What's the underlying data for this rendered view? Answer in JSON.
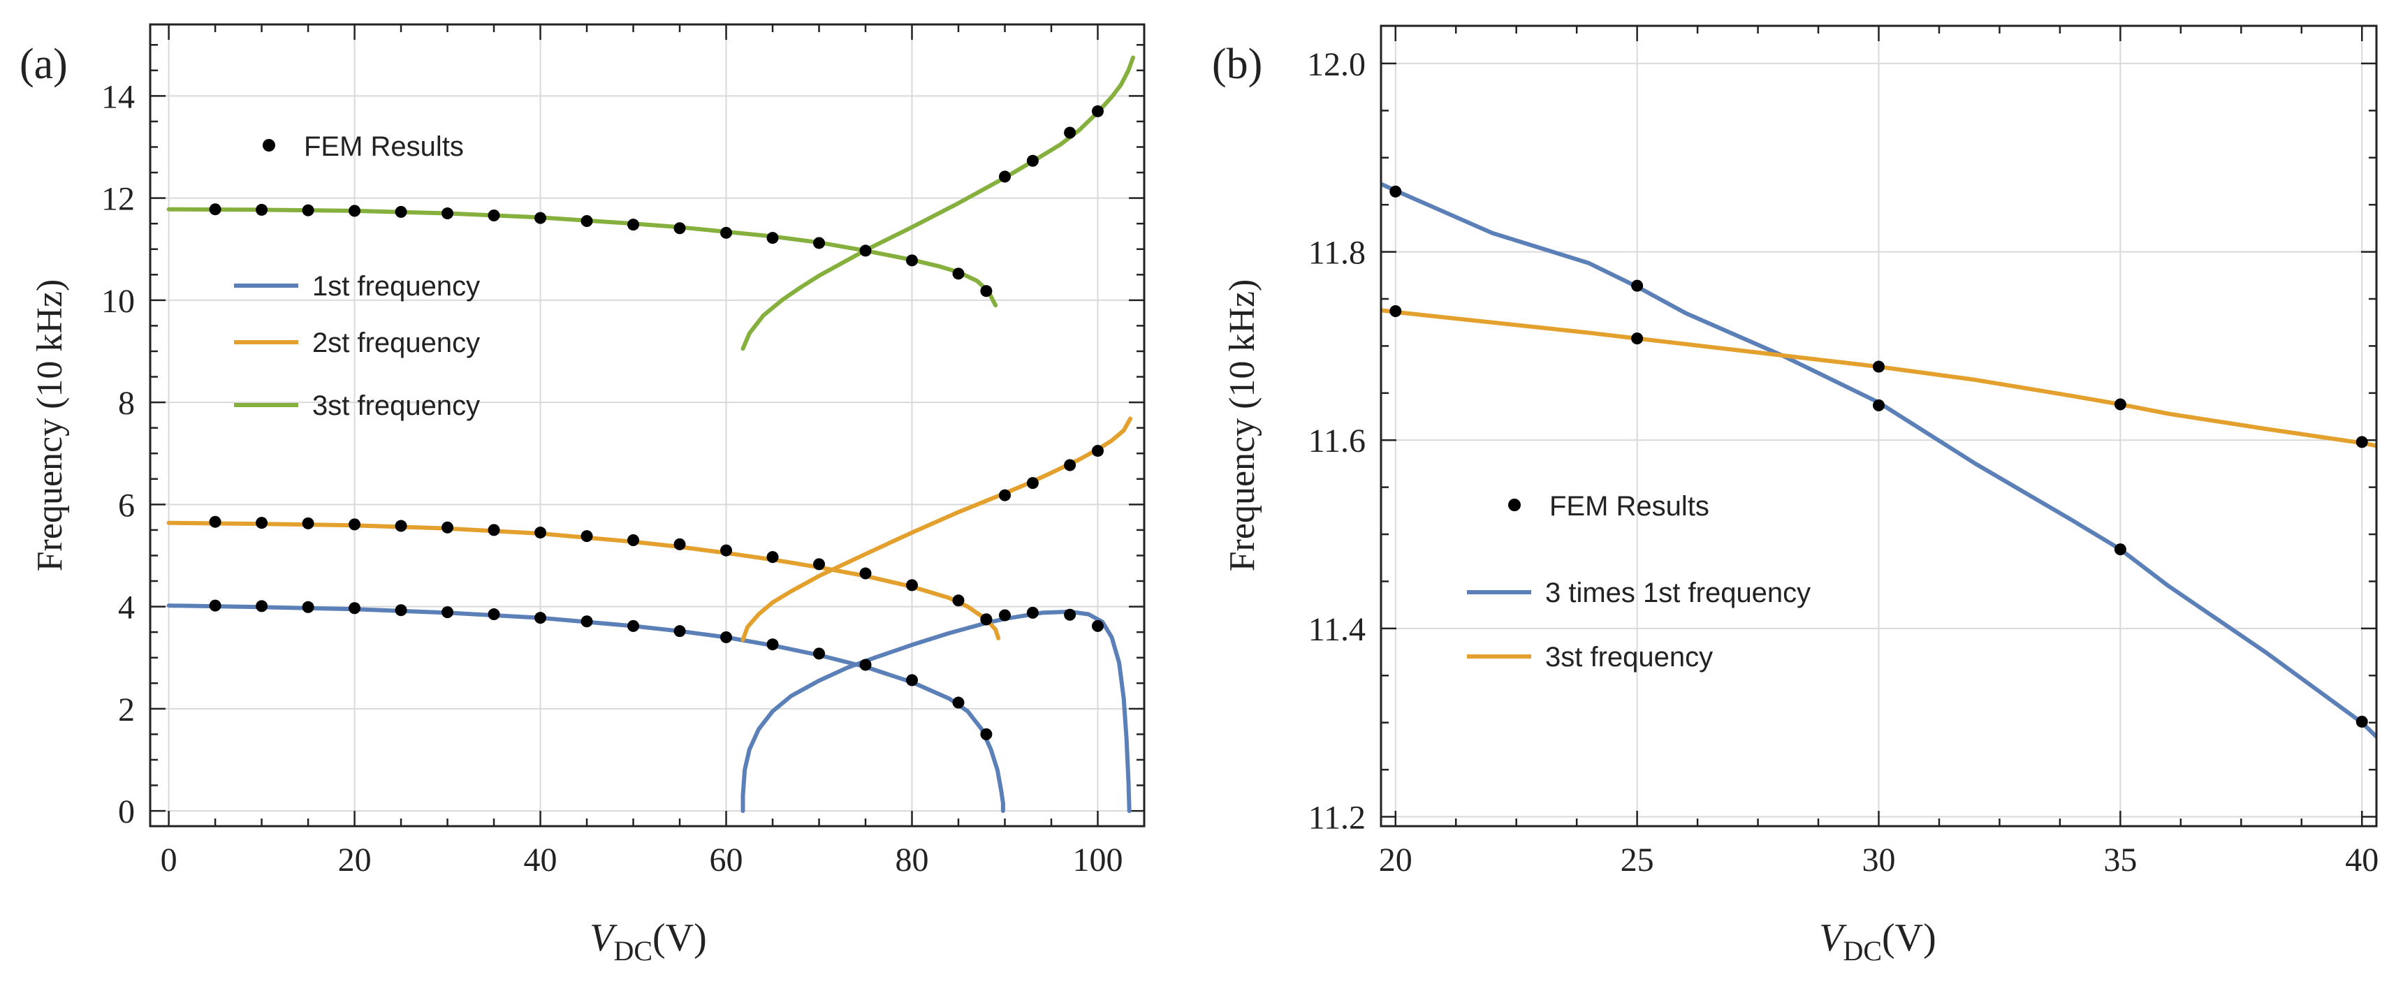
{
  "chart_data": [
    {
      "type": "line",
      "panel_label": "(a)",
      "xlabel_main": "V",
      "xlabel_sub": "DC",
      "xlabel_unit": "(V)",
      "ylabel": "Frequency (10 kHz)",
      "xlim": [
        -2,
        105
      ],
      "ylim": [
        -0.3,
        15.4
      ],
      "xticks": [
        0,
        20,
        40,
        60,
        80,
        100
      ],
      "yticks": [
        0,
        2,
        4,
        6,
        8,
        10,
        12,
        14
      ],
      "grid": true,
      "legend_position": "upper-left",
      "scatter_legend": "FEM Results",
      "colors": {
        "first": "#5b80b8",
        "second": "#e3a02c",
        "third": "#86b03d",
        "fem": "#000000"
      },
      "series": [
        {
          "name": "1st frequency",
          "color": "#5b80b8",
          "branches": [
            {
              "x": [
                0,
                10,
                20,
                30,
                40,
                50,
                55,
                60,
                65,
                70,
                75,
                80,
                84,
                86,
                87.5,
                88.5,
                89.2,
                89.6,
                89.8,
                89.8
              ],
              "y": [
                4.02,
                3.99,
                3.95,
                3.88,
                3.78,
                3.62,
                3.52,
                3.4,
                3.24,
                3.05,
                2.82,
                2.52,
                2.2,
                1.95,
                1.6,
                1.2,
                0.8,
                0.4,
                0.15,
                0
              ]
            },
            {
              "x": [
                61.8,
                61.8,
                62,
                62.5,
                63.5,
                65,
                67,
                70,
                73,
                76,
                80,
                84,
                88,
                90,
                94,
                97,
                99,
                100.5,
                101.5,
                102.3,
                102.8,
                103.1,
                103.3,
                103.4
              ],
              "y": [
                0,
                0.3,
                0.8,
                1.2,
                1.6,
                1.95,
                2.25,
                2.55,
                2.8,
                3.0,
                3.25,
                3.48,
                3.68,
                3.76,
                3.88,
                3.9,
                3.85,
                3.7,
                3.4,
                2.9,
                2.2,
                1.4,
                0.6,
                0
              ]
            }
          ]
        },
        {
          "name": "2st frequency",
          "color": "#e3a02c",
          "branches": [
            {
              "x": [
                0,
                10,
                20,
                30,
                40,
                50,
                55,
                60,
                65,
                70,
                75,
                80,
                84,
                86,
                88,
                89,
                89.3
              ],
              "y": [
                5.64,
                5.62,
                5.59,
                5.53,
                5.43,
                5.27,
                5.17,
                5.05,
                4.92,
                4.77,
                4.6,
                4.39,
                4.17,
                4.0,
                3.75,
                3.55,
                3.38
              ]
            },
            {
              "x": [
                61.8,
                62.3,
                63.5,
                65,
                67,
                70,
                75,
                80,
                85,
                90,
                93,
                95,
                98,
                100,
                101.5,
                102.8,
                103.5
              ],
              "y": [
                3.35,
                3.6,
                3.85,
                4.08,
                4.3,
                4.6,
                5.03,
                5.45,
                5.85,
                6.22,
                6.45,
                6.62,
                6.88,
                7.08,
                7.25,
                7.45,
                7.68
              ]
            }
          ]
        },
        {
          "name": "3st frequency",
          "color": "#86b03d",
          "branches": [
            {
              "x": [
                0,
                10,
                20,
                30,
                40,
                50,
                55,
                60,
                65,
                70,
                75,
                80,
                83,
                85,
                87,
                88.2,
                89
              ],
              "y": [
                11.78,
                11.77,
                11.75,
                11.7,
                11.62,
                11.5,
                11.43,
                11.34,
                11.25,
                11.13,
                10.97,
                10.79,
                10.66,
                10.55,
                10.38,
                10.18,
                9.9
              ]
            },
            {
              "x": [
                61.8,
                62.5,
                64,
                66,
                68,
                70,
                75,
                80,
                85,
                90,
                93,
                96,
                98,
                100,
                101.5,
                102.5,
                103.3,
                103.8
              ],
              "y": [
                9.05,
                9.35,
                9.7,
                10.0,
                10.25,
                10.48,
                10.98,
                11.43,
                11.9,
                12.4,
                12.72,
                13.05,
                13.33,
                13.68,
                13.98,
                14.22,
                14.5,
                14.75
              ]
            }
          ]
        }
      ],
      "fem_results": {
        "name": "FEM Results",
        "x": [
          5,
          10,
          15,
          20,
          25,
          30,
          35,
          40,
          45,
          50,
          55,
          60,
          65,
          70,
          75,
          80,
          85,
          88,
          5,
          10,
          15,
          20,
          25,
          30,
          35,
          40,
          45,
          50,
          55,
          60,
          65,
          70,
          75,
          80,
          85,
          88,
          5,
          10,
          15,
          20,
          25,
          30,
          35,
          40,
          45,
          50,
          55,
          60,
          65,
          70,
          75,
          80,
          85,
          88,
          88,
          90,
          93,
          97,
          100,
          90,
          93,
          97,
          100,
          90,
          93,
          97,
          100
        ],
        "y": [
          4.02,
          4.01,
          3.99,
          3.97,
          3.93,
          3.89,
          3.85,
          3.78,
          3.71,
          3.62,
          3.52,
          3.4,
          3.26,
          3.08,
          2.86,
          2.56,
          2.12,
          1.5,
          5.66,
          5.64,
          5.63,
          5.61,
          5.58,
          5.55,
          5.5,
          5.45,
          5.38,
          5.3,
          5.22,
          5.1,
          4.97,
          4.83,
          4.65,
          4.42,
          4.12,
          3.75,
          11.78,
          11.77,
          11.76,
          11.75,
          11.73,
          11.7,
          11.66,
          11.61,
          11.55,
          11.48,
          11.41,
          11.32,
          11.22,
          11.12,
          10.97,
          10.78,
          10.52,
          10.18,
          3.75,
          3.83,
          3.88,
          3.84,
          3.62,
          6.18,
          6.42,
          6.77,
          7.05,
          12.42,
          12.73,
          13.28,
          13.7
        ]
      }
    },
    {
      "type": "line",
      "panel_label": "(b)",
      "xlabel_main": "V",
      "xlabel_sub": "DC",
      "xlabel_unit": "(V)",
      "ylabel": "Frequency (10 kHz)",
      "xlim": [
        19.7,
        40.3
      ],
      "ylim": [
        11.19,
        12.04
      ],
      "xticks": [
        20,
        25,
        30,
        35,
        40
      ],
      "yticks": [
        11.2,
        11.4,
        11.6,
        11.8,
        12.0
      ],
      "ytick_labels": [
        "11.2",
        "11.4",
        "11.6",
        "11.8",
        "12.0"
      ],
      "grid": true,
      "legend_position": "center-left",
      "scatter_legend": "FEM Results",
      "colors": {
        "first": "#5b80b8",
        "third": "#e3a02c",
        "fem": "#000000"
      },
      "series": [
        {
          "name": "3 times 1st frequency",
          "color": "#5b80b8",
          "x": [
            19.7,
            20,
            22,
            24,
            25,
            26,
            28,
            30,
            32,
            34,
            35,
            36,
            38,
            40,
            40.3
          ],
          "y": [
            11.872,
            11.865,
            11.82,
            11.788,
            11.763,
            11.735,
            11.69,
            11.64,
            11.575,
            11.515,
            11.484,
            11.445,
            11.375,
            11.3,
            11.285
          ]
        },
        {
          "name": "3st frequency",
          "color": "#e3a02c",
          "x": [
            19.7,
            20,
            22,
            24,
            25,
            26,
            28,
            30,
            32,
            34,
            35,
            36,
            38,
            40,
            40.3
          ],
          "y": [
            11.738,
            11.736,
            11.725,
            11.714,
            11.708,
            11.702,
            11.69,
            11.678,
            11.664,
            11.647,
            11.638,
            11.628,
            11.612,
            11.597,
            11.594
          ]
        }
      ],
      "fem_results": {
        "name": "FEM Results",
        "x": [
          20,
          25,
          30,
          35,
          40,
          20,
          25,
          30,
          35,
          40
        ],
        "y": [
          11.864,
          11.764,
          11.637,
          11.484,
          11.301,
          11.737,
          11.708,
          11.678,
          11.638,
          11.598
        ]
      }
    }
  ]
}
